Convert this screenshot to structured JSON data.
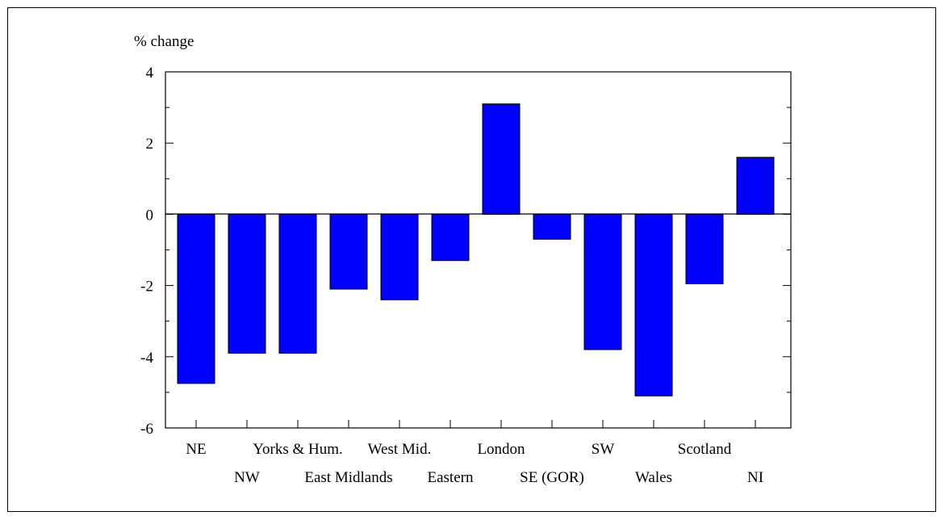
{
  "chart_data": {
    "type": "bar",
    "title": "",
    "ylabel": "% change",
    "xlabel": "",
    "ylim": [
      -6,
      4
    ],
    "yticks": [
      4,
      2,
      0,
      -2,
      -4,
      -6
    ],
    "grid": false,
    "bar_color": "#0000FF",
    "categories": [
      "NE",
      "NW",
      "Yorks & Hum.",
      "East Midlands",
      "West Mid.",
      "Eastern",
      "London",
      "SE (GOR)",
      "SW",
      "Wales",
      "Scotland",
      "NI"
    ],
    "values": [
      -4.75,
      -3.9,
      -3.9,
      -2.1,
      -2.4,
      -1.3,
      3.1,
      -0.7,
      -3.8,
      -5.1,
      -1.95,
      1.6
    ]
  }
}
